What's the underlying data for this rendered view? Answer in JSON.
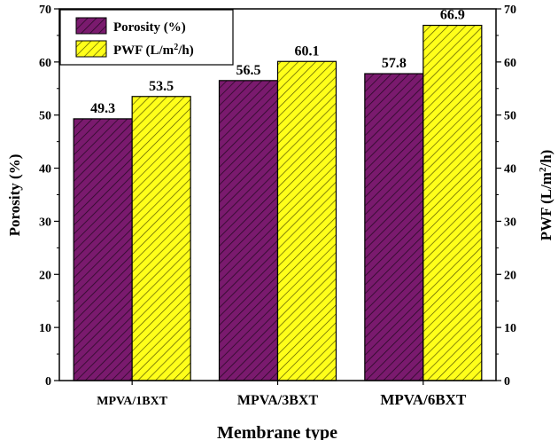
{
  "chart_data": {
    "type": "bar",
    "categories": [
      "MPVA/1BXT",
      "MPVA/3BXT",
      "MPVA/6BXT"
    ],
    "series": [
      {
        "name": "Porosity (%)",
        "values": [
          49.3,
          56.5,
          57.8
        ],
        "color": "#7a1a6e",
        "hatch": "#2b0a27",
        "axis": "left"
      },
      {
        "name": "PWF (L/m2/h)",
        "values": [
          53.5,
          60.1,
          66.9
        ],
        "color": "#ffff1a",
        "hatch": "#555500",
        "axis": "right"
      }
    ],
    "data_labels": [
      "49.3",
      "53.5",
      "56.5",
      "60.1",
      "57.8",
      "66.9"
    ],
    "xlabel": "Membrane type",
    "ylabel_left": "Porosity (%)",
    "ylabel_right": "PWF (L/m2/h)",
    "ylim": [
      0,
      70
    ],
    "yticks": [
      "0",
      "10",
      "20",
      "30",
      "40",
      "50",
      "60",
      "70"
    ],
    "legend_position": "top-left",
    "grid": false
  }
}
